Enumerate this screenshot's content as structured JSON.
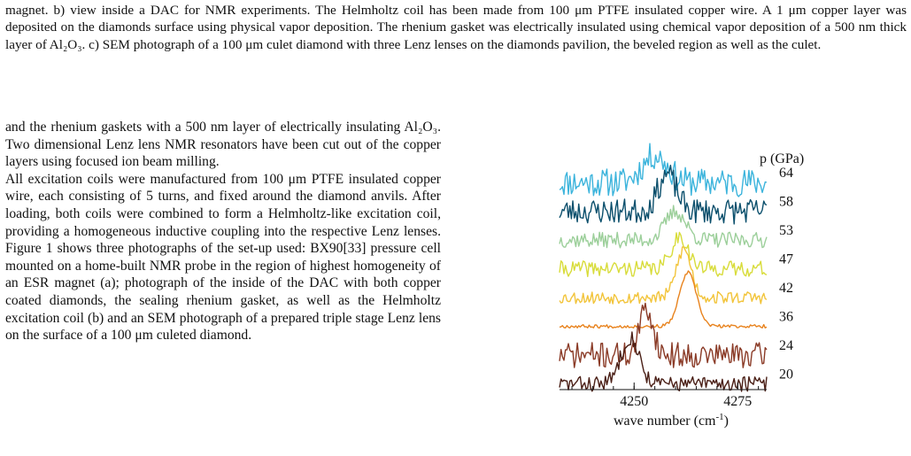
{
  "caption": {
    "text": "magnet. b) view inside a DAC for NMR experiments. The Helmholtz coil has been made from 100 μm PTFE insulated copper wire. A 1 μm copper layer was deposited on the diamonds surface using physical vapor deposition. The rhenium gasket was electrically insulated using chemical vapor deposition of a 500 nm thick layer of Al₂O₃. c) SEM photograph of a 100 μm culet diamond with three Lenz lenses on the diamonds pavilion, the beveled region as well as the culet."
  },
  "body": {
    "paragraph1": "and the rhenium gaskets with a 500 nm layer of electrically insulating Al₂O₃. Two dimensional Lenz lens NMR resonators have been cut out of the copper layers using focused ion beam milling.",
    "paragraph2": "All excitation coils were manufactured from 100 μm PTFE insulated copper wire, each consisting of 5 turns, and fixed around the diamond anvils. After loading, both coils were combined to form a Helmholtz-like excitation coil, providing a homogeneous inductive coupling into the respective Lenz lenses. Figure 1 shows three photographs of the set-up used: BX90[33] pressure cell mounted on a home-built NMR probe in the region of highest homogeneity of an ESR magnet (a); photograph of the inside of the DAC with both copper coated diamonds, the sealing rhenium gasket, as well as the Helmholtz excitation coil (b) and an SEM photograph of a prepared triple stage Lenz lens on the surface of a 100 μm culeted diamond."
  },
  "chart_data": {
    "type": "line",
    "xlabel": "wave number (cm⁻¹)",
    "legend_title": "p (GPa)",
    "xlim": [
      4232,
      4282
    ],
    "xticks": [
      4250,
      4275
    ],
    "series": [
      {
        "name": "64",
        "color": "#3cb4dc",
        "peak": 4255,
        "width": 3.0,
        "height": 1.9,
        "noise": 1.0,
        "seed": 11
      },
      {
        "name": "58",
        "color": "#0b4f6c",
        "peak": 4258,
        "width": 2.2,
        "height": 2.6,
        "noise": 0.9,
        "seed": 23
      },
      {
        "name": "53",
        "color": "#9ccf9a",
        "peak": 4260,
        "width": 2.4,
        "height": 2.0,
        "noise": 0.55,
        "seed": 37
      },
      {
        "name": "47",
        "color": "#d8dc3a",
        "peak": 4261,
        "width": 2.0,
        "height": 2.3,
        "noise": 0.55,
        "seed": 41
      },
      {
        "name": "42",
        "color": "#f2c43a",
        "peak": 4262,
        "width": 1.8,
        "height": 3.4,
        "noise": 0.45,
        "seed": 53
      },
      {
        "name": "36",
        "color": "#e8831e",
        "peak": 4263,
        "width": 2.0,
        "height": 3.8,
        "noise": 0.12,
        "seed": 67
      },
      {
        "name": "24",
        "color": "#8a3a26",
        "peak": 4253,
        "width": 1.6,
        "height": 3.3,
        "noise": 0.9,
        "seed": 71
      },
      {
        "name": "20",
        "color": "#4a1f16",
        "peak": 4249,
        "width": 2.2,
        "height": 3.3,
        "noise": 0.55,
        "seed": 83
      }
    ]
  }
}
